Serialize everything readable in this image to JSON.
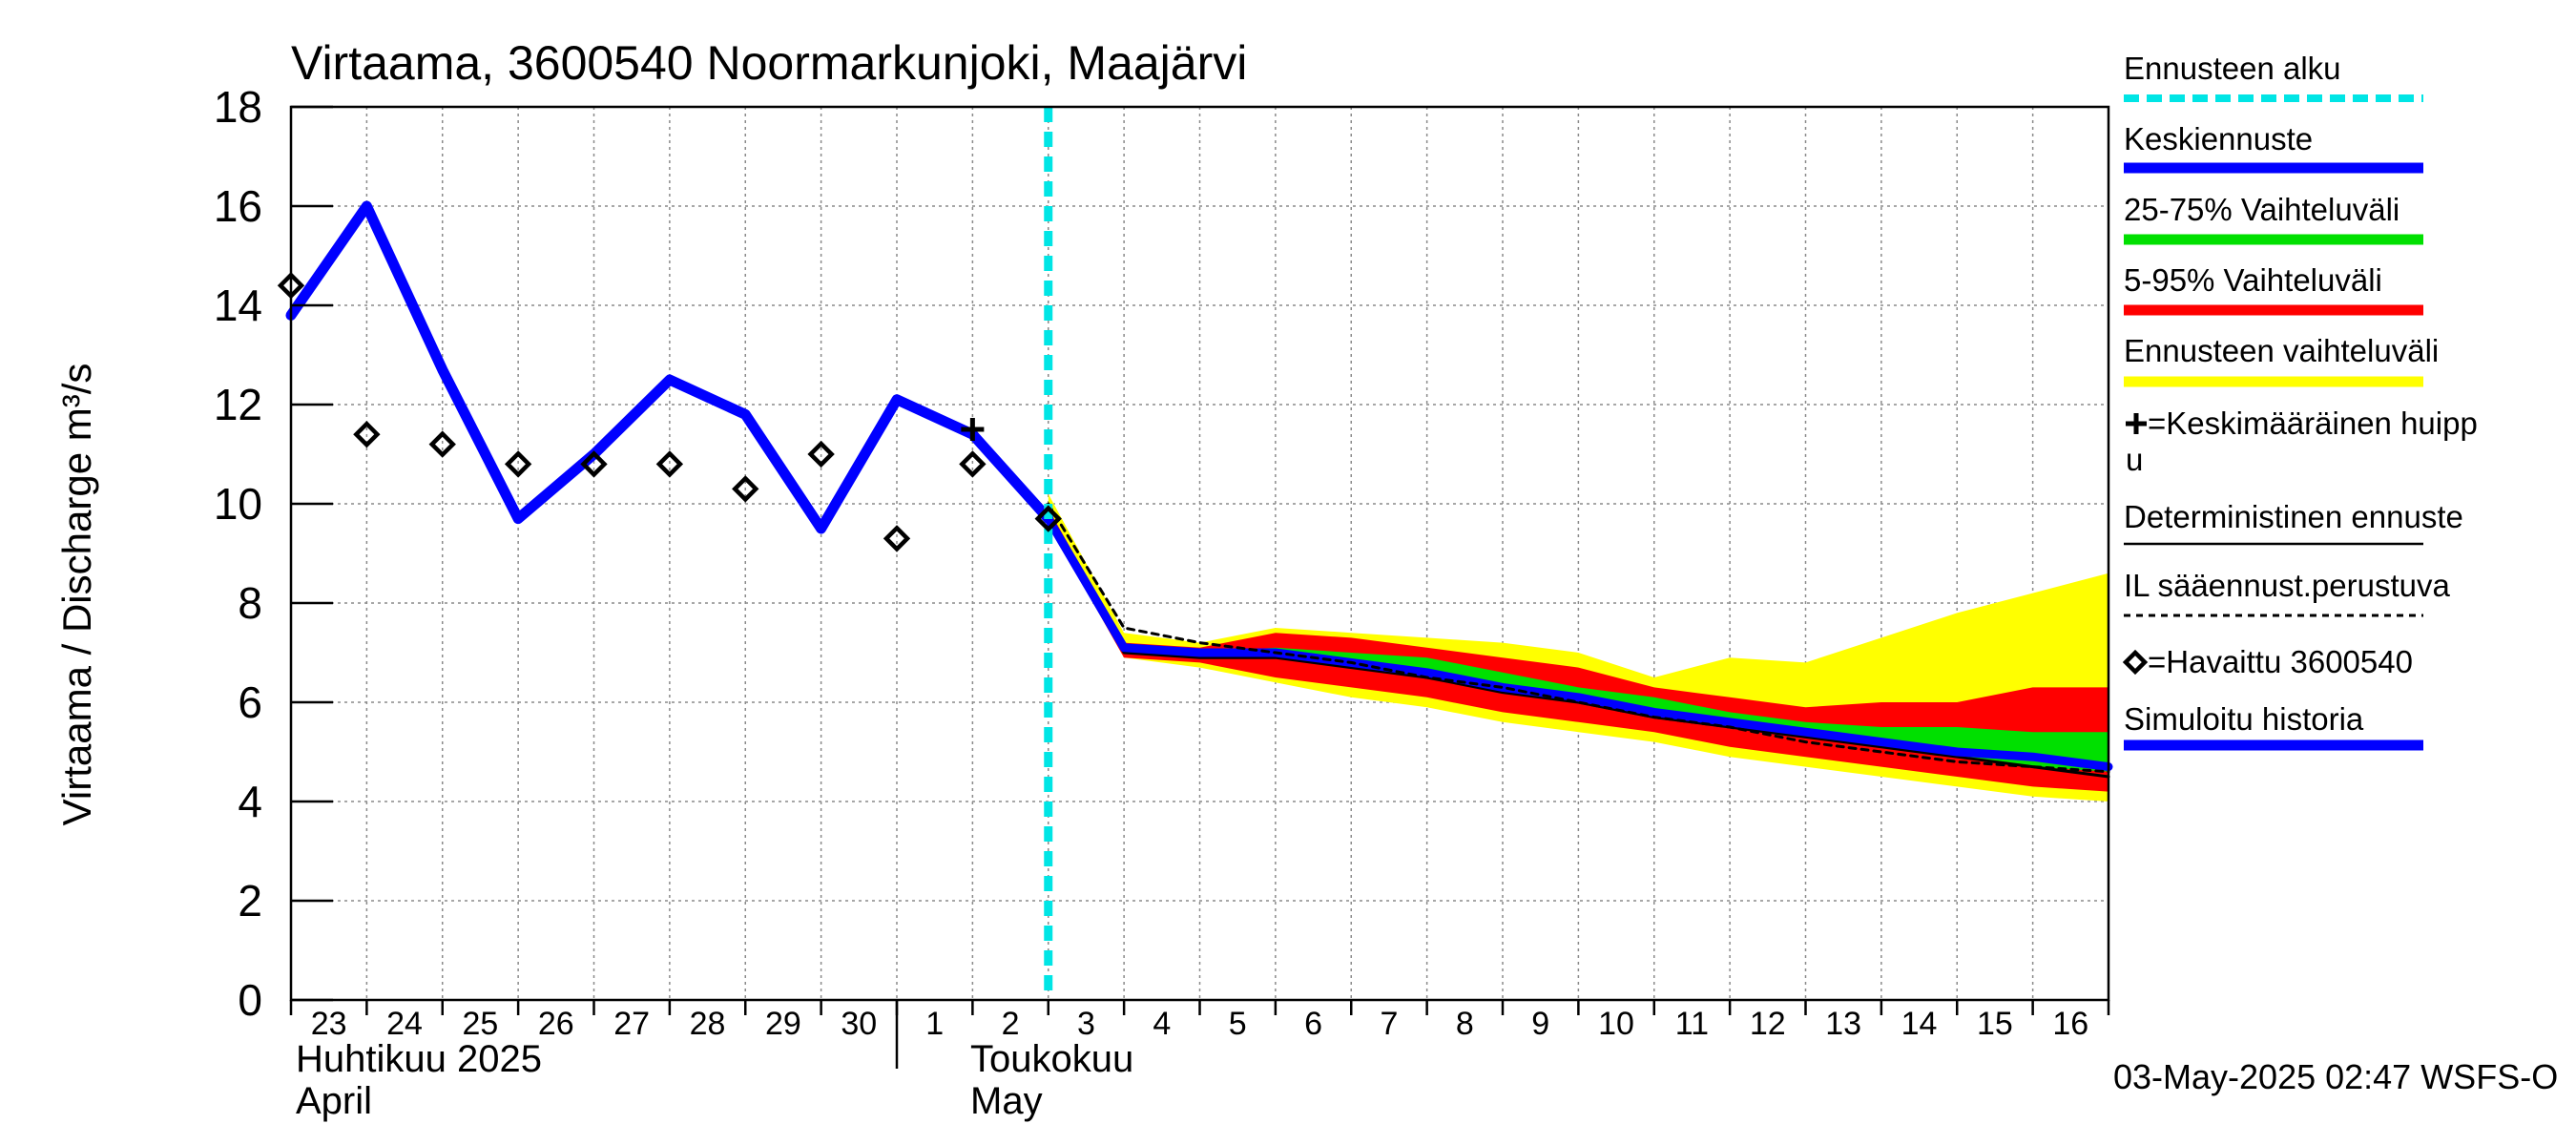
{
  "chart_data": {
    "type": "line",
    "title": "Virtaama, 3600540 Noormarkunjoki, Maajärvi",
    "ylabel": "Virtaama / Discharge    m³/s",
    "ylim": [
      0,
      18
    ],
    "yticks": [
      "0",
      "2",
      "4",
      "6",
      "8",
      "10",
      "12",
      "14",
      "16",
      "18"
    ],
    "x_start": "2025-04-23",
    "x_end": "2025-05-17",
    "x_tick_labels": [
      "23",
      "24",
      "25",
      "26",
      "27",
      "28",
      "29",
      "30",
      "1",
      "2",
      "3",
      "4",
      "5",
      "6",
      "7",
      "8",
      "9",
      "10",
      "11",
      "12",
      "13",
      "14",
      "15",
      "16"
    ],
    "month_labels": [
      {
        "fi": "Huhtikuu  2025",
        "en": "April"
      },
      {
        "fi": "Toukokuu",
        "en": "May"
      }
    ],
    "grid": true,
    "legend_position": "right",
    "forecast_start": "2025-05-03",
    "timestamp": "03-May-2025 02:47 WSFS-O",
    "legend": [
      {
        "label": "Ennusteen alku",
        "color": "#00e5e5",
        "style": "dashed"
      },
      {
        "label": "Keskiennuste",
        "color": "#0000ff",
        "style": "thick"
      },
      {
        "label": "25-75% Vaihteluväli",
        "color": "#00e000",
        "style": "thick"
      },
      {
        "label": "5-95% Vaihteluväli",
        "color": "#ff0000",
        "style": "thick"
      },
      {
        "label": "Ennusteen vaihteluväli",
        "color": "#ffff00",
        "style": "thick"
      },
      {
        "label": "=Keskimääräinen huippu",
        "color": "#000000",
        "style": "plus"
      },
      {
        "label": "Deterministinen ennuste",
        "color": "#000000",
        "style": "thin"
      },
      {
        "label": "IL sääennust.perustuva",
        "color": "#000000",
        "style": "dotted"
      },
      {
        "label": "=Havaittu 3600540",
        "color": "#000000",
        "style": "diamond"
      },
      {
        "label": "Simuloitu historia",
        "color": "#0000ff",
        "style": "thick"
      }
    ],
    "simulated_history": {
      "x": [
        "2025-04-23",
        "2025-04-24",
        "2025-04-25",
        "2025-04-26",
        "2025-04-27",
        "2025-04-28",
        "2025-04-29",
        "2025-04-30",
        "2025-05-01",
        "2025-05-02",
        "2025-05-03"
      ],
      "y": [
        13.8,
        16.0,
        12.7,
        9.7,
        11.0,
        12.5,
        11.8,
        9.5,
        12.1,
        11.4,
        9.7
      ]
    },
    "observed": {
      "x": [
        "2025-04-23",
        "2025-04-24",
        "2025-04-25",
        "2025-04-26",
        "2025-04-27",
        "2025-04-28",
        "2025-04-29",
        "2025-04-30",
        "2025-05-01",
        "2025-05-02",
        "2025-05-03"
      ],
      "y": [
        14.4,
        11.4,
        11.2,
        10.8,
        10.8,
        10.8,
        10.3,
        11.0,
        9.3,
        10.8,
        9.7
      ]
    },
    "mean_peak": {
      "x": "2025-05-02",
      "y": 11.5
    },
    "forecast": {
      "x": [
        "2025-05-03",
        "2025-05-04",
        "2025-05-05",
        "2025-05-06",
        "2025-05-07",
        "2025-05-08",
        "2025-05-09",
        "2025-05-10",
        "2025-05-11",
        "2025-05-12",
        "2025-05-13",
        "2025-05-14",
        "2025-05-15",
        "2025-05-16",
        "2025-05-17"
      ],
      "full_min": [
        9.6,
        6.9,
        6.7,
        6.4,
        6.1,
        5.9,
        5.6,
        5.4,
        5.2,
        4.9,
        4.7,
        4.5,
        4.3,
        4.1,
        4.0
      ],
      "full_max": [
        10.2,
        7.4,
        7.2,
        7.5,
        7.4,
        7.3,
        7.2,
        7.0,
        6.5,
        6.9,
        6.8,
        7.3,
        7.8,
        8.2,
        8.6
      ],
      "p5": [
        9.6,
        6.9,
        6.8,
        6.5,
        6.3,
        6.1,
        5.8,
        5.6,
        5.4,
        5.1,
        4.9,
        4.7,
        4.5,
        4.3,
        4.2
      ],
      "p95": [
        9.9,
        7.2,
        7.1,
        7.4,
        7.3,
        7.1,
        6.9,
        6.7,
        6.3,
        6.1,
        5.9,
        6.0,
        6.0,
        6.3,
        6.3
      ],
      "p25": [
        9.7,
        7.0,
        6.9,
        6.9,
        6.7,
        6.5,
        6.2,
        6.0,
        5.8,
        5.5,
        5.3,
        5.1,
        4.9,
        4.7,
        4.6
      ],
      "p75": [
        9.8,
        7.1,
        7.0,
        7.1,
        7.0,
        6.9,
        6.6,
        6.3,
        6.1,
        5.8,
        5.6,
        5.5,
        5.5,
        5.4,
        5.4
      ],
      "median": [
        9.7,
        7.1,
        7.0,
        7.0,
        6.8,
        6.6,
        6.3,
        6.1,
        5.8,
        5.6,
        5.4,
        5.2,
        5.0,
        4.9,
        4.7
      ],
      "deterministic": [
        9.7,
        7.0,
        6.9,
        6.9,
        6.7,
        6.5,
        6.2,
        6.0,
        5.7,
        5.5,
        5.3,
        5.1,
        4.9,
        4.7,
        4.5
      ],
      "il_forecast": [
        10.0,
        7.5,
        7.2,
        7.0,
        6.8,
        6.5,
        6.3,
        6.0,
        5.7,
        5.5,
        5.2,
        5.0,
        4.8,
        4.7,
        4.6
      ]
    }
  }
}
